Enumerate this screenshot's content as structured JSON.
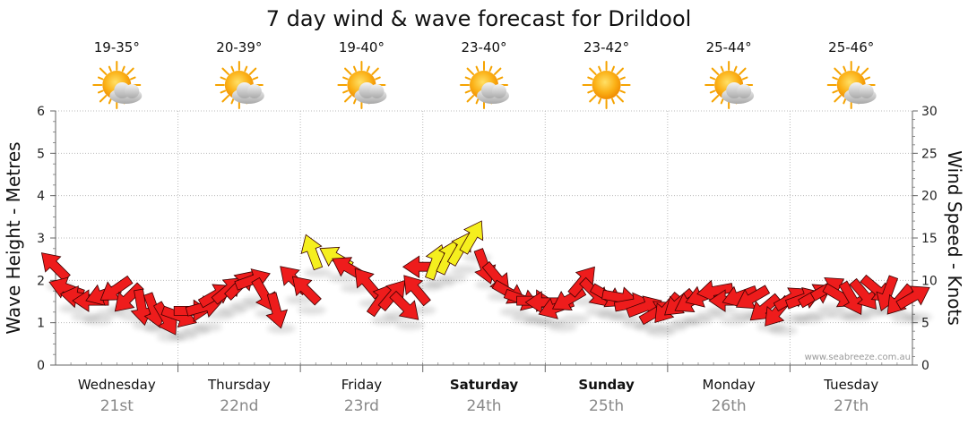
{
  "chart_data": {
    "type": "line",
    "title": "7 day wind & wave forecast for Drildool",
    "ylabel_left": "Wave Height - Metres",
    "ylabel_right": "Wind Speed - Knots",
    "ylim_left": [
      0,
      6
    ],
    "ylim_right": [
      0,
      30
    ],
    "yticks_left": [
      "0",
      "1",
      "2",
      "3",
      "4",
      "5",
      "6"
    ],
    "yticks_right": [
      "0",
      "5",
      "10",
      "15",
      "20",
      "25",
      "30"
    ],
    "grid": true,
    "credit": "www.seabreeze.com.au",
    "days": [
      {
        "name": "Wednesday",
        "date": "21st",
        "bold": false,
        "temp": "19-35°",
        "icon": "sun-cloud-icon"
      },
      {
        "name": "Thursday",
        "date": "22nd",
        "bold": false,
        "temp": "20-39°",
        "icon": "sun-cloud-icon"
      },
      {
        "name": "Friday",
        "date": "23rd",
        "bold": false,
        "temp": "19-40°",
        "icon": "sun-cloud-icon"
      },
      {
        "name": "Saturday",
        "date": "24th",
        "bold": true,
        "temp": "23-40°",
        "icon": "sun-cloud-icon"
      },
      {
        "name": "Sunday",
        "date": "25th",
        "bold": true,
        "temp": "23-42°",
        "icon": "sun-icon"
      },
      {
        "name": "Monday",
        "date": "26th",
        "bold": false,
        "temp": "25-44°",
        "icon": "sun-cloud-icon"
      },
      {
        "name": "Tuesday",
        "date": "27th",
        "bold": false,
        "temp": "25-46°",
        "icon": "sun-cloud-icon"
      }
    ],
    "series": [
      {
        "name": "wind",
        "unit": "knots",
        "x_unit": "days",
        "points": [
          {
            "x": 0.0,
            "y": 11.6,
            "dir": 315,
            "c": "red"
          },
          {
            "x": 0.1,
            "y": 9.0,
            "dir": 290,
            "c": "red"
          },
          {
            "x": 0.2,
            "y": 8.0,
            "dir": 280,
            "c": "red"
          },
          {
            "x": 0.3,
            "y": 7.6,
            "dir": 270,
            "c": "red"
          },
          {
            "x": 0.4,
            "y": 8.4,
            "dir": 250,
            "c": "red"
          },
          {
            "x": 0.5,
            "y": 9.0,
            "dir": 235,
            "c": "red"
          },
          {
            "x": 0.6,
            "y": 8.0,
            "dir": 225,
            "c": "red"
          },
          {
            "x": 0.7,
            "y": 7.0,
            "dir": 170,
            "c": "red"
          },
          {
            "x": 0.8,
            "y": 6.6,
            "dir": 160,
            "c": "red"
          },
          {
            "x": 0.9,
            "y": 5.6,
            "dir": 150,
            "c": "red"
          },
          {
            "x": 1.0,
            "y": 5.8,
            "dir": 110,
            "c": "red"
          },
          {
            "x": 1.1,
            "y": 6.4,
            "dir": 90,
            "c": "red"
          },
          {
            "x": 1.2,
            "y": 6.8,
            "dir": 75,
            "c": "red"
          },
          {
            "x": 1.3,
            "y": 8.2,
            "dir": 60,
            "c": "red"
          },
          {
            "x": 1.4,
            "y": 8.8,
            "dir": 50,
            "c": "red"
          },
          {
            "x": 1.5,
            "y": 9.4,
            "dir": 45,
            "c": "red"
          },
          {
            "x": 1.6,
            "y": 10.0,
            "dir": 70,
            "c": "red"
          },
          {
            "x": 1.7,
            "y": 8.4,
            "dir": 150,
            "c": "red"
          },
          {
            "x": 1.8,
            "y": 6.6,
            "dir": 165,
            "c": "red"
          },
          {
            "x": 1.95,
            "y": 10.0,
            "dir": 315,
            "c": "red"
          },
          {
            "x": 2.05,
            "y": 8.8,
            "dir": 315,
            "c": "red"
          },
          {
            "x": 2.1,
            "y": 13.2,
            "dir": 340,
            "c": "yellow"
          },
          {
            "x": 2.3,
            "y": 12.6,
            "dir": 300,
            "c": "yellow"
          },
          {
            "x": 2.4,
            "y": 11.4,
            "dir": 300,
            "c": "red"
          },
          {
            "x": 2.55,
            "y": 9.6,
            "dir": 320,
            "c": "red"
          },
          {
            "x": 2.65,
            "y": 7.6,
            "dir": 35,
            "c": "red"
          },
          {
            "x": 2.75,
            "y": 8.2,
            "dir": 40,
            "c": "red"
          },
          {
            "x": 2.85,
            "y": 7.0,
            "dir": 135,
            "c": "red"
          },
          {
            "x": 2.95,
            "y": 8.8,
            "dir": 320,
            "c": "red"
          },
          {
            "x": 3.0,
            "y": 11.6,
            "dir": 270,
            "c": "red"
          },
          {
            "x": 3.1,
            "y": 12.0,
            "dir": 20,
            "c": "yellow"
          },
          {
            "x": 3.2,
            "y": 12.6,
            "dir": 25,
            "c": "yellow"
          },
          {
            "x": 3.3,
            "y": 13.6,
            "dir": 30,
            "c": "yellow"
          },
          {
            "x": 3.4,
            "y": 15.0,
            "dir": 30,
            "c": "yellow"
          },
          {
            "x": 3.5,
            "y": 11.8,
            "dir": 160,
            "c": "red"
          },
          {
            "x": 3.6,
            "y": 10.4,
            "dir": 140,
            "c": "red"
          },
          {
            "x": 3.7,
            "y": 8.6,
            "dir": 120,
            "c": "red"
          },
          {
            "x": 3.8,
            "y": 7.8,
            "dir": 110,
            "c": "red"
          },
          {
            "x": 3.9,
            "y": 7.6,
            "dir": 90,
            "c": "red"
          },
          {
            "x": 4.0,
            "y": 7.4,
            "dir": 270,
            "c": "red"
          },
          {
            "x": 4.1,
            "y": 6.8,
            "dir": 250,
            "c": "red"
          },
          {
            "x": 4.2,
            "y": 7.8,
            "dir": 240,
            "c": "red"
          },
          {
            "x": 4.3,
            "y": 9.8,
            "dir": 40,
            "c": "red"
          },
          {
            "x": 4.4,
            "y": 8.6,
            "dir": 135,
            "c": "red"
          },
          {
            "x": 4.5,
            "y": 8.2,
            "dir": 120,
            "c": "red"
          },
          {
            "x": 4.6,
            "y": 8.0,
            "dir": 100,
            "c": "red"
          },
          {
            "x": 4.7,
            "y": 7.2,
            "dir": 80,
            "c": "red"
          },
          {
            "x": 4.8,
            "y": 6.8,
            "dir": 70,
            "c": "red"
          },
          {
            "x": 4.9,
            "y": 6.2,
            "dir": 60,
            "c": "red"
          },
          {
            "x": 5.0,
            "y": 6.8,
            "dir": 220,
            "c": "red"
          },
          {
            "x": 5.1,
            "y": 7.4,
            "dir": 230,
            "c": "red"
          },
          {
            "x": 5.2,
            "y": 7.6,
            "dir": 240,
            "c": "red"
          },
          {
            "x": 5.3,
            "y": 8.2,
            "dir": 250,
            "c": "red"
          },
          {
            "x": 5.4,
            "y": 8.8,
            "dir": 260,
            "c": "red"
          },
          {
            "x": 5.5,
            "y": 7.6,
            "dir": 270,
            "c": "red"
          },
          {
            "x": 5.6,
            "y": 8.2,
            "dir": 250,
            "c": "red"
          },
          {
            "x": 5.7,
            "y": 8.0,
            "dir": 240,
            "c": "red"
          },
          {
            "x": 5.8,
            "y": 6.8,
            "dir": 230,
            "c": "red"
          },
          {
            "x": 5.9,
            "y": 6.4,
            "dir": 220,
            "c": "red"
          },
          {
            "x": 6.0,
            "y": 7.8,
            "dir": 60,
            "c": "red"
          },
          {
            "x": 6.1,
            "y": 7.8,
            "dir": 70,
            "c": "red"
          },
          {
            "x": 6.2,
            "y": 8.2,
            "dir": 60,
            "c": "red"
          },
          {
            "x": 6.3,
            "y": 9.0,
            "dir": 60,
            "c": "red"
          },
          {
            "x": 6.4,
            "y": 8.2,
            "dir": 120,
            "c": "red"
          },
          {
            "x": 6.5,
            "y": 8.0,
            "dir": 150,
            "c": "red"
          },
          {
            "x": 6.6,
            "y": 8.4,
            "dir": 140,
            "c": "red"
          },
          {
            "x": 6.7,
            "y": 9.0,
            "dir": 130,
            "c": "red"
          },
          {
            "x": 6.8,
            "y": 8.6,
            "dir": 200,
            "c": "red"
          },
          {
            "x": 6.9,
            "y": 7.8,
            "dir": 220,
            "c": "red"
          },
          {
            "x": 7.0,
            "y": 8.0,
            "dir": 60,
            "c": "red"
          }
        ]
      }
    ]
  },
  "colors": {
    "wind_normal": "#ee1c1c",
    "wind_strong": "#f5ef1e",
    "grid": "#bbbbbb",
    "axis": "#666666"
  }
}
